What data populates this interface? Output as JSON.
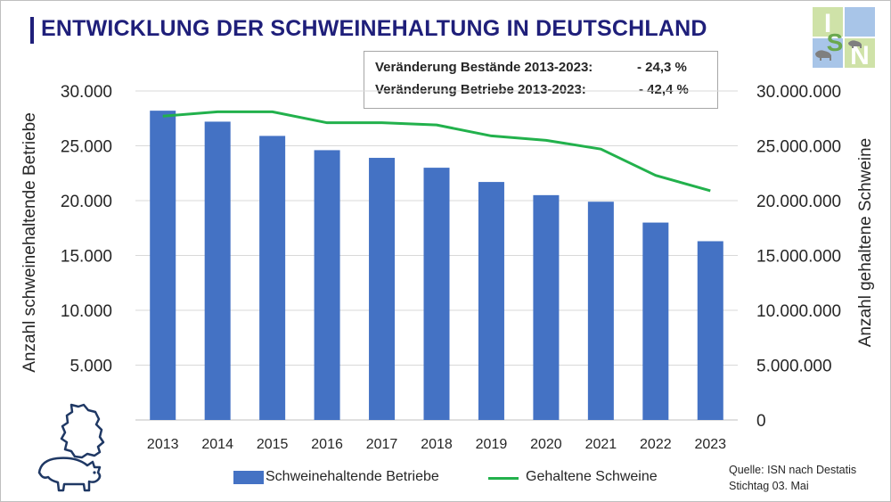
{
  "title": "ENTWICKLUNG DER SCHWEINEHALTUNG IN DEUTSCHLAND",
  "stats": [
    {
      "label": "Veränderung Bestände 2013-2023:",
      "value": "- 24,3 %"
    },
    {
      "label": "Veränderung Betriebe  2013-2023:",
      "value": "- 42,4 %"
    }
  ],
  "logo": {
    "letters": [
      "I",
      "S",
      "N"
    ],
    "colors": [
      "#6aa84f",
      "#a8c5e8",
      "#cfe2a8",
      "#ffffff"
    ]
  },
  "chart_data": {
    "type": "bar+line",
    "categories": [
      "2013",
      "2014",
      "2015",
      "2016",
      "2017",
      "2018",
      "2019",
      "2020",
      "2021",
      "2022",
      "2023"
    ],
    "series": [
      {
        "name": "Schweinehaltende Betriebe",
        "type": "bar",
        "axis": "left",
        "color": "#4472c4",
        "values": [
          28200,
          27200,
          25900,
          24600,
          23900,
          23000,
          21700,
          20500,
          19900,
          18000,
          16300
        ]
      },
      {
        "name": "Gehaltene Schweine",
        "type": "line",
        "axis": "right",
        "color": "#22b14c",
        "values": [
          27700000,
          28100000,
          28100000,
          27100000,
          27100000,
          26900000,
          25900000,
          25500000,
          24700000,
          22300000,
          20900000
        ]
      }
    ],
    "y_left": {
      "label": "Anzahl schweinehaltende Betriebe",
      "min": 0,
      "max": 30000,
      "ticks": [
        "5.000",
        "10.000",
        "15.000",
        "20.000",
        "25.000",
        "30.000"
      ],
      "tick_values": [
        5000,
        10000,
        15000,
        20000,
        25000,
        30000
      ]
    },
    "y_right": {
      "label": "Anzahl gehaltene Schweine",
      "min": 0,
      "max": 30000000,
      "ticks": [
        "0",
        "5.000.000",
        "10.000.000",
        "15.000.000",
        "20.000.000",
        "25.000.000",
        "30.000.000"
      ],
      "tick_values": [
        0,
        5000000,
        10000000,
        15000000,
        20000000,
        25000000,
        30000000
      ]
    },
    "grid": true,
    "legend": "bottom"
  },
  "source_lines": [
    "Quelle: ISN nach Destatis",
    "Stichtag 03. Mai"
  ]
}
